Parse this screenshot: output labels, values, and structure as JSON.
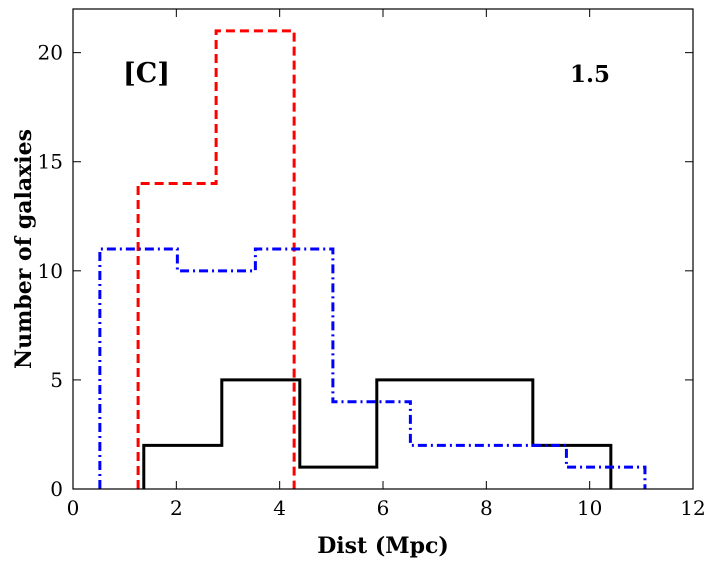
{
  "chart_data": {
    "type": "histogram-step",
    "xlabel": "Dist (Mpc)",
    "ylabel": "Number of galaxies",
    "xlim": [
      0,
      12
    ],
    "ylim": [
      0,
      22
    ],
    "xticks": [
      0,
      2,
      4,
      6,
      8,
      10,
      12
    ],
    "yticks": [
      0,
      5,
      10,
      15,
      20
    ],
    "grid": false,
    "annotations": [
      {
        "text": "[C]",
        "position": "top-left"
      },
      {
        "text": "1.5",
        "position": "top-right"
      }
    ],
    "series": [
      {
        "name": "solid-black",
        "color": "#000000",
        "style": "solid",
        "edges": [
          1.37,
          2.88,
          4.39,
          5.88,
          8.9,
          10.41
        ],
        "values": [
          2,
          5,
          1,
          5,
          2
        ]
      },
      {
        "name": "dashed-red",
        "color": "#ff0000",
        "style": "dashed",
        "edges": [
          1.26,
          2.77,
          4.28
        ],
        "values": [
          14,
          21
        ]
      },
      {
        "name": "dashdot-blue",
        "color": "#0000ff",
        "style": "dashdot",
        "edges": [
          0.52,
          2.02,
          3.53,
          5.03,
          6.53,
          8.04,
          9.55,
          11.07
        ],
        "values": [
          11,
          10,
          11,
          4,
          2,
          2,
          1
        ]
      }
    ]
  }
}
